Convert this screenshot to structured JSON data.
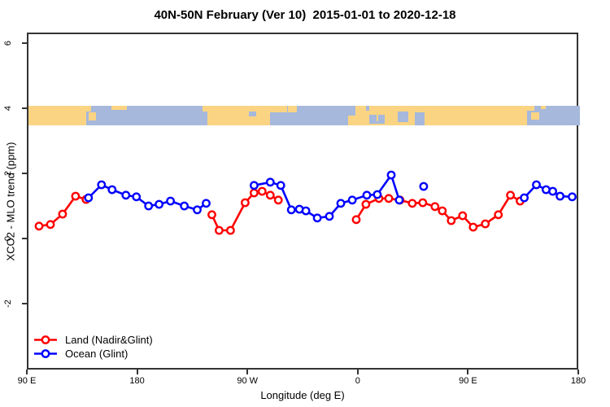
{
  "title": "40N-50N February (Ver 10)  2015-01-01 to 2020-12-18",
  "colors": {
    "land_series": "#ff0000",
    "ocean_series": "#0000ff",
    "band_land": "#fbd483",
    "band_ocean": "#a6b8db",
    "axis": "#333333"
  },
  "chart_data": {
    "type": "line",
    "title": "40N-50N February (Ver 10)  2015-01-01 to 2020-12-18",
    "xlabel": "Longitude (deg E)",
    "ylabel": "XCO2 - MLO trend (ppm)",
    "x_domain": [
      90,
      540
    ],
    "y_domain": [
      -4.03,
      6.33
    ],
    "grid": "off",
    "legend_position": "bottom-left",
    "x_ticks": [
      {
        "v": 90,
        "label": "90 E"
      },
      {
        "v": 180,
        "label": "180"
      },
      {
        "v": 270,
        "label": "90 W"
      },
      {
        "v": 360,
        "label": "0"
      },
      {
        "v": 450,
        "label": "90 E"
      },
      {
        "v": 540,
        "label": "180"
      }
    ],
    "y_ticks": [
      {
        "v": 6,
        "label": "6"
      },
      {
        "v": 4,
        "label": "4"
      },
      {
        "v": 2,
        "label": "2"
      },
      {
        "v": 0,
        "label": "0"
      },
      {
        "v": -2,
        "label": "-2"
      }
    ],
    "map_band": {
      "value_top": 4.08,
      "value_bottom": 3.48,
      "land_color": "#fbd483",
      "ocean_color": "#a6b8db",
      "ocean_patches": [
        {
          "from": 137,
          "to": 141,
          "t": 0.3,
          "b": 1.0
        },
        {
          "from": 141,
          "to": 232,
          "t": 0.0,
          "b": 1.0
        },
        {
          "from": 232,
          "to": 236,
          "t": 0.3,
          "b": 1.0
        },
        {
          "from": 270,
          "to": 276,
          "t": 0.3,
          "b": 0.55
        },
        {
          "from": 287,
          "to": 301,
          "t": 0.35,
          "b": 1.0
        },
        {
          "from": 301,
          "to": 351,
          "t": 0.0,
          "b": 1.0
        },
        {
          "from": 351,
          "to": 357,
          "t": 0.0,
          "b": 0.5
        },
        {
          "from": 365.5,
          "to": 368,
          "t": 0.0,
          "b": 0.25
        },
        {
          "from": 368,
          "to": 381,
          "t": 0.45,
          "b": 0.92
        },
        {
          "from": 391,
          "to": 400,
          "t": 0.3,
          "b": 0.85
        },
        {
          "from": 405,
          "to": 413,
          "t": 0.35,
          "b": 1.0
        },
        {
          "from": 497,
          "to": 503,
          "t": 0.25,
          "b": 1.0
        },
        {
          "from": 503,
          "to": 540,
          "t": 0.0,
          "b": 1.0
        }
      ],
      "land_islands": [
        {
          "from": 139,
          "to": 145,
          "t": 0.35,
          "b": 0.75
        },
        {
          "from": 158,
          "to": 170,
          "t": 0.0,
          "b": 0.2
        },
        {
          "from": 302,
          "to": 309,
          "t": 0.0,
          "b": 0.35
        },
        {
          "from": 374,
          "to": 375.5,
          "t": 0.45,
          "b": 0.8
        },
        {
          "from": 500,
          "to": 507,
          "t": 0.35,
          "b": 0.7
        },
        {
          "from": 508,
          "to": 512,
          "t": 0.0,
          "b": 0.18
        }
      ]
    },
    "series": [
      {
        "name": "Land (Nadir&Glint)",
        "color": "#ff0000",
        "segments": [
          [
            [
              98.6,
              0.43
            ],
            [
              107.9,
              0.48
            ],
            [
              117.8,
              0.8
            ],
            [
              128.4,
              1.35
            ],
            [
              137.0,
              1.25
            ]
          ],
          [
            [
              239.7,
              0.78
            ],
            [
              245.6,
              0.3
            ],
            [
              254.9,
              0.3
            ],
            [
              266.8,
              1.15
            ],
            [
              274.1,
              1.45
            ],
            [
              280.7,
              1.5
            ],
            [
              287.3,
              1.38
            ],
            [
              293.9,
              1.23
            ]
          ],
          [
            [
              357.5,
              0.63
            ],
            [
              365.4,
              1.1
            ],
            [
              376.0,
              1.28
            ],
            [
              384.0,
              1.28
            ],
            [
              393.2,
              1.23
            ],
            [
              403.2,
              1.13
            ],
            [
              411.8,
              1.15
            ],
            [
              421.7,
              1.03
            ],
            [
              427.7,
              0.9
            ],
            [
              435.0,
              0.6
            ],
            [
              444.3,
              0.75
            ],
            [
              452.9,
              0.4
            ],
            [
              462.8,
              0.5
            ],
            [
              473.4,
              0.78
            ],
            [
              483.3,
              1.38
            ],
            [
              491.2,
              1.2
            ]
          ]
        ]
      },
      {
        "name": "Ocean (Glint)",
        "color": "#0000ff",
        "segments": [
          [
            [
              139.0,
              1.3
            ],
            [
              149.6,
              1.7
            ],
            [
              158.2,
              1.55
            ],
            [
              169.5,
              1.38
            ],
            [
              178.1,
              1.33
            ],
            [
              188.0,
              1.05
            ],
            [
              196.6,
              1.1
            ],
            [
              205.9,
              1.2
            ],
            [
              217.2,
              1.05
            ],
            [
              227.7,
              0.93
            ],
            [
              235.0,
              1.13
            ]
          ],
          [
            [
              274.1,
              1.68
            ],
            [
              287.3,
              1.78
            ],
            [
              295.9,
              1.68
            ],
            [
              304.5,
              0.93
            ],
            [
              311.1,
              0.95
            ],
            [
              316.4,
              0.9
            ],
            [
              325.7,
              0.68
            ],
            [
              335.6,
              0.73
            ],
            [
              344.9,
              1.13
            ],
            [
              354.2,
              1.23
            ],
            [
              366.1,
              1.38
            ],
            [
              374.7,
              1.4
            ],
            [
              386.0,
              2.0
            ],
            [
              392.6,
              1.23
            ]
          ],
          [
            [
              412.5,
              1.65
            ]
          ],
          [
            [
              494.6,
              1.3
            ],
            [
              504.5,
              1.7
            ],
            [
              512.4,
              1.55
            ],
            [
              517.8,
              1.5
            ],
            [
              523.8,
              1.35
            ],
            [
              533.7,
              1.33
            ]
          ]
        ]
      }
    ]
  }
}
